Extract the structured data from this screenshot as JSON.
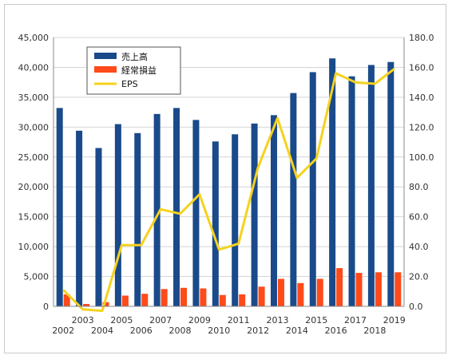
{
  "chart_data": {
    "type": "bar",
    "categories": [
      "2002",
      "2003",
      "2004",
      "2005",
      "2006",
      "2007",
      "2008",
      "2009",
      "2010",
      "2011",
      "2012",
      "2013",
      "2014",
      "2015",
      "2016",
      "2017",
      "2018",
      "2019"
    ],
    "series": [
      {
        "name": "売上高",
        "type": "bar",
        "axis": "left",
        "color": "#1a4a8a",
        "values": [
          33200,
          29400,
          26500,
          30500,
          29000,
          32200,
          33200,
          31200,
          27600,
          28800,
          30600,
          32000,
          35700,
          39200,
          41500,
          38500,
          40400,
          40900
        ]
      },
      {
        "name": "経常損益",
        "type": "bar",
        "axis": "left",
        "color": "#ff4a1a",
        "values": [
          2000,
          400,
          700,
          1800,
          2100,
          2900,
          3100,
          3000,
          1900,
          2000,
          3300,
          4600,
          3900,
          4600,
          6400,
          5600,
          5700,
          5700
        ]
      },
      {
        "name": "EPS",
        "type": "line",
        "axis": "right",
        "color": "#f5d21e",
        "values": [
          11,
          -2,
          -3,
          41,
          41,
          65,
          62,
          75,
          38,
          42,
          93,
          126,
          86,
          99,
          156,
          150,
          149,
          159
        ]
      }
    ],
    "y_left": {
      "min": 0,
      "max": 45000,
      "ticks": [
        "0",
        "5,000",
        "10,000",
        "15,000",
        "20,000",
        "25,000",
        "30,000",
        "35,000",
        "40,000",
        "45,000"
      ]
    },
    "y_right": {
      "min": 0,
      "max": 180,
      "ticks": [
        "0.0",
        "20.0",
        "40.0",
        "60.0",
        "80.0",
        "100.0",
        "120.0",
        "140.0",
        "160.0",
        "180.0"
      ]
    },
    "legend": {
      "placement": "top-left",
      "labels": [
        "売上高",
        "経常損益",
        "EPS"
      ]
    },
    "title": "",
    "xlabel": "",
    "ylabel": "",
    "grid": true
  }
}
